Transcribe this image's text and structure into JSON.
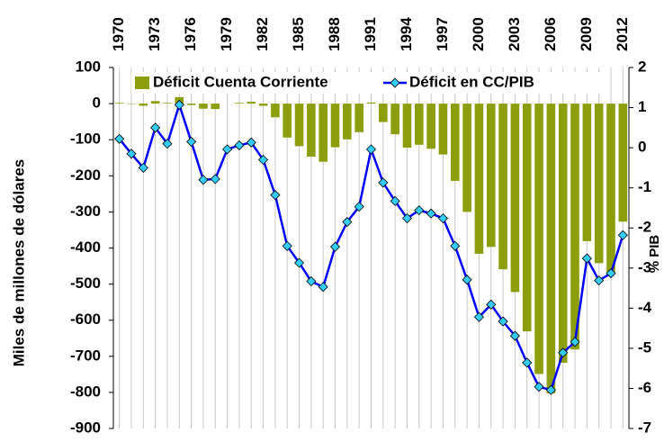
{
  "chart_data": {
    "type": "bar_line",
    "categories": [
      "1970",
      null,
      null,
      "1973",
      null,
      null,
      "1976",
      null,
      null,
      "1979",
      null,
      null,
      "1982",
      null,
      null,
      "1985",
      null,
      null,
      "1988",
      null,
      null,
      "1991",
      null,
      null,
      "1994",
      null,
      null,
      "1997",
      null,
      null,
      "2000",
      null,
      null,
      "2003",
      null,
      null,
      "2006",
      null,
      null,
      "2009",
      null,
      null,
      "2012"
    ],
    "series": [
      {
        "name": "Déficit Cuenta Corriente",
        "type": "bar",
        "color": "#8c9e0c",
        "values": [
          2,
          -1,
          -6,
          7,
          2,
          18,
          -4,
          -14,
          -15,
          0,
          2,
          5,
          -6,
          -38,
          -94,
          -118,
          -147,
          -161,
          -121,
          -99,
          -79,
          3,
          -51,
          -85,
          -122,
          -114,
          -125,
          -141,
          -214,
          -300,
          -416,
          -397,
          -459,
          -522,
          -631,
          -749,
          -803,
          -718,
          -681,
          -381,
          -442,
          -466,
          -327
        ]
      },
      {
        "name": "Déficit en CC/PIB",
        "type": "line",
        "axis": "y2",
        "color": "#0000ff",
        "marker_color": "#33ccff",
        "values": [
          0.22,
          -0.15,
          -0.5,
          0.5,
          0.1,
          1.07,
          0.15,
          -0.8,
          -0.78,
          -0.04,
          0.06,
          0.13,
          -0.3,
          -1.18,
          -2.45,
          -2.87,
          -3.33,
          -3.47,
          -2.47,
          -1.85,
          -1.47,
          -0.04,
          -0.87,
          -1.33,
          -1.76,
          -1.56,
          -1.64,
          -1.76,
          -2.45,
          -3.29,
          -4.22,
          -3.91,
          -4.33,
          -4.69,
          -5.36,
          -5.96,
          -6.04,
          -5.11,
          -4.84,
          -2.76,
          -3.31,
          -3.13,
          -2.18
        ]
      }
    ],
    "ylabel": "Miles de millones de dólares",
    "y2label": "% PIB",
    "ylim": [
      -900,
      100
    ],
    "yticks": [
      -900,
      -800,
      -700,
      -600,
      -500,
      -400,
      -300,
      -200,
      -100,
      0,
      100
    ],
    "y2lim": [
      -7,
      2
    ],
    "y2ticks": [
      -7,
      -6,
      -5,
      -4,
      -3,
      -2,
      -1,
      0,
      1,
      2
    ],
    "grid": true,
    "legend": "top"
  }
}
